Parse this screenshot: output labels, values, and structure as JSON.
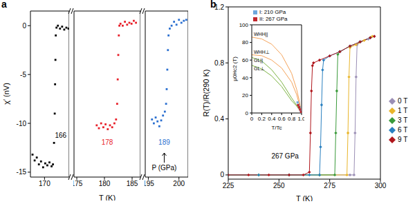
{
  "chart_data": [
    {
      "panel": "a",
      "type": "scatter",
      "y_label": "χ′ (nV)",
      "xlim": [
        168,
        173.5
      ],
      "xticks": [
        170
      ],
      "ylim": [
        -15.5,
        1.5
      ],
      "yticks": [
        -15,
        -10,
        -5,
        0
      ],
      "marker": "square",
      "series": [
        {
          "color": "#000000",
          "x": [
            168.3,
            168.6,
            168.9,
            169.2,
            169.5,
            169.8,
            170.1,
            170.4,
            170.7,
            171.0,
            171.2,
            171.35,
            171.45,
            171.5,
            171.55,
            171.6,
            171.7,
            171.9,
            172.2,
            172.5,
            172.8,
            173.1,
            173.4
          ],
          "values": [
            -13.2,
            -13.8,
            -13.5,
            -14.2,
            -13.9,
            -14.5,
            -14.1,
            -14.3,
            -14.0,
            -14.4,
            -14.2,
            -12.0,
            -9.0,
            -6.0,
            -3.5,
            -1.0,
            -0.2,
            0,
            -0.3,
            -0.1,
            -0.4,
            -0.2,
            -0.3
          ]
        }
      ],
      "annotations": [
        {
          "text": "166",
          "x": 172.3,
          "y": -11.5,
          "color": "#000000"
        }
      ]
    },
    {
      "type": "scatter",
      "x_label": "T (K)",
      "xlim": [
        174.5,
        186.5
      ],
      "xticks": [
        175,
        180,
        185
      ],
      "ylim": [
        -15.5,
        1.5
      ],
      "yticks": [
        -15,
        -10,
        -5,
        0
      ],
      "tick_labels": "x",
      "marker": "square",
      "series": [
        {
          "color": "#e8202a",
          "x": [
            178.6,
            179.0,
            179.4,
            179.8,
            180.2,
            180.6,
            181.0,
            181.4,
            181.8,
            182.1,
            182.3,
            182.4,
            182.5,
            182.6,
            182.7,
            182.9,
            183.3,
            183.7,
            184.1,
            184.5,
            184.9,
            185.3,
            185.7
          ],
          "values": [
            -10.2,
            -10.5,
            -10.0,
            -10.4,
            -10.1,
            -10.6,
            -10.2,
            -10.4,
            -10.0,
            -9.6,
            -8.0,
            -5.5,
            -3.0,
            -1.0,
            0,
            0.2,
            0,
            0.4,
            0.1,
            0.3,
            0.2,
            0.5,
            0.3
          ]
        }
      ],
      "annotations": [
        {
          "text": "178",
          "x": 180.5,
          "y": -12.2,
          "color": "#e8202a"
        }
      ]
    },
    {
      "type": "scatter",
      "xlim": [
        194.5,
        201.5
      ],
      "xticks": [
        195,
        200
      ],
      "ylim": [
        -15.5,
        1.5
      ],
      "yticks": [
        -15,
        -10,
        -5,
        0
      ],
      "tick_labels": "x",
      "marker": "square",
      "series": [
        {
          "color": "#2a6fd0",
          "x": [
            195.6,
            195.9,
            196.2,
            196.5,
            196.8,
            197.1,
            197.4,
            197.7,
            197.9,
            198.0,
            198.1,
            198.2,
            198.3,
            198.5,
            198.8,
            199.2,
            199.6,
            200.0,
            200.4,
            200.8,
            201.2
          ],
          "values": [
            -9.6,
            -10.0,
            -9.4,
            -9.8,
            -10.3,
            -9.7,
            -9.2,
            -8.8,
            -8.0,
            -6.5,
            -4.5,
            -2.5,
            -1.0,
            -0.3,
            0,
            0.4,
            0.1,
            0.6,
            0.3,
            0.5,
            0.6
          ]
        }
      ],
      "annotations": [
        {
          "text": "189",
          "x": 197.6,
          "y": -12.2,
          "color": "#2a6fd0"
        },
        {
          "text": "P (GPa)",
          "x": 197.6,
          "y": -14.8
        }
      ]
    },
    {
      "panel": "b",
      "type": "line",
      "x_label": "T (K)",
      "y_label": "R(T)/R(290 K)",
      "xlim": [
        225,
        300
      ],
      "xticks": [
        225,
        250,
        275,
        300
      ],
      "ylim": [
        -0.03,
        1.2
      ],
      "yticks": [
        0,
        0.4,
        0.8,
        1.2
      ],
      "marker": "diamond",
      "legend": "right",
      "series": [
        {
          "name": "0 T",
          "color": "#9b8fb5",
          "x": [
            225,
            240,
            255,
            270,
            285,
            287,
            287.5,
            288,
            288.5,
            290,
            294,
            297
          ],
          "values": [
            0,
            0,
            0,
            0,
            0,
            0,
            0.3,
            0.7,
            0.93,
            0.95,
            0.97,
            0.99
          ]
        },
        {
          "name": "1 T",
          "color": "#e9b52a",
          "x": [
            225,
            240,
            255,
            270,
            283.5,
            284,
            284.5,
            285,
            288,
            292,
            296
          ],
          "values": [
            0,
            0,
            0,
            0,
            0,
            0.3,
            0.7,
            0.91,
            0.93,
            0.96,
            0.99
          ]
        },
        {
          "name": "3 T",
          "color": "#3a9a3a",
          "x": [
            225,
            240,
            255,
            270,
            277.5,
            278,
            278.5,
            279,
            280,
            285,
            290,
            295
          ],
          "values": [
            0,
            0,
            0,
            0,
            0,
            0.3,
            0.6,
            0.86,
            0.88,
            0.92,
            0.95,
            0.98
          ]
        },
        {
          "name": "6 T",
          "color": "#2a80c0",
          "x": [
            225,
            240,
            255,
            265,
            270,
            270.5,
            271,
            271.5,
            272,
            275,
            280,
            285,
            290,
            295
          ],
          "values": [
            0,
            0,
            0,
            0,
            0,
            0.2,
            0.5,
            0.75,
            0.82,
            0.85,
            0.88,
            0.92,
            0.95,
            0.98
          ]
        },
        {
          "name": "9 T",
          "color": "#b0161c",
          "x": [
            225,
            235,
            245,
            255,
            262,
            265,
            265.5,
            266,
            266.5,
            267,
            270,
            275,
            280,
            285,
            290,
            295,
            297
          ],
          "values": [
            0,
            0,
            0,
            0,
            0,
            0.02,
            0.3,
            0.6,
            0.78,
            0.8,
            0.82,
            0.85,
            0.88,
            0.92,
            0.95,
            0.98,
            0.99
          ]
        }
      ],
      "annotations": [
        {
          "text": "267 GPa",
          "x": 253,
          "y": 0.12,
          "color": "#000000"
        }
      ]
    },
    {
      "type": "line",
      "x_label": "T/Tc",
      "y_label": "μ0Hc2 (T)",
      "xlim": [
        0,
        1
      ],
      "xticks": [
        0,
        0.2,
        0.4,
        0.6,
        0.8,
        {
          "value": 1,
          "label": "1.0"
        }
      ],
      "ylim": [
        0,
        100
      ],
      "yticks": [
        0,
        20,
        40,
        60,
        80,
        100
      ],
      "legend": "upper left",
      "series": [
        {
          "name": "WHH||",
          "type": "line",
          "color": "#f5a35a",
          "x": [
            0,
            0.2,
            0.4,
            0.6,
            0.8,
            0.9,
            0.95,
            1
          ],
          "values": [
            86,
            84,
            78,
            66,
            45,
            27,
            15,
            0
          ]
        },
        {
          "name": "WHH⊥",
          "type": "line",
          "color": "#f5a35a",
          "x": [
            0,
            0.2,
            0.4,
            0.6,
            0.8,
            0.9,
            0.95,
            1
          ],
          "values": [
            66,
            65,
            60,
            51,
            35,
            21,
            11,
            0
          ]
        },
        {
          "name": "GL||",
          "type": "line",
          "color": "#7cb342",
          "x": [
            0,
            0.2,
            0.4,
            0.6,
            0.8,
            0.9,
            0.95,
            1
          ],
          "values": [
            63,
            59,
            49,
            35,
            17,
            9,
            5,
            0
          ]
        },
        {
          "name": "GL⊥",
          "type": "line",
          "color": "#7cb342",
          "x": [
            0,
            0.2,
            0.4,
            0.6,
            0.8,
            0.9,
            0.95,
            1
          ],
          "values": [
            54,
            50,
            42,
            30,
            14,
            8,
            4,
            0
          ]
        },
        {
          "name": "I: 210 GPa",
          "type": "scatter",
          "marker": "square",
          "color": "#6fa8dc",
          "x": [
            0.92,
            0.94,
            0.96,
            0.98,
            1
          ],
          "values": [
            12,
            9,
            6,
            3,
            0
          ]
        },
        {
          "name": "II: 267 GPa",
          "type": "scatter",
          "marker": "square",
          "color": "#c1272d",
          "x": [
            0.93,
            0.95,
            0.97,
            0.99,
            1
          ],
          "values": [
            9,
            6.5,
            4,
            1.5,
            0
          ]
        }
      ]
    }
  ]
}
